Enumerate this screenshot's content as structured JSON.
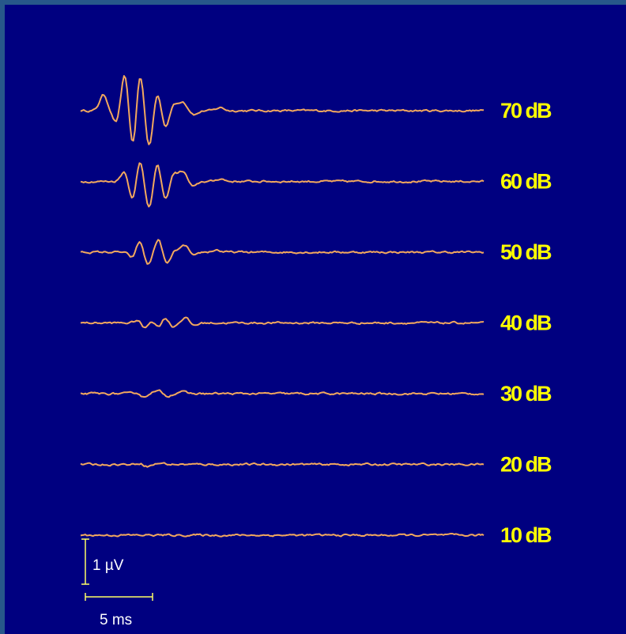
{
  "chart_data": {
    "type": "line",
    "grid": false,
    "legend": "none",
    "colors": {
      "background": "#000080",
      "frame": "#27588a",
      "trace": "#f2a85e",
      "level_label": "#ffff00",
      "scale_bar": "#ffff66",
      "scale_text": "#ffffff"
    },
    "series": [
      {
        "name": "70 dB",
        "peaks": [
          [
            1.7,
            0.35
          ],
          [
            2.7,
            -0.3
          ],
          [
            3.3,
            0.9
          ],
          [
            3.9,
            -1.0
          ],
          [
            4.4,
            0.95
          ],
          [
            5.1,
            -0.85
          ],
          [
            5.7,
            0.45
          ],
          [
            6.3,
            -0.4
          ],
          [
            6.9,
            0.15
          ],
          [
            7.6,
            0.2
          ],
          [
            8.5,
            -0.08
          ],
          [
            10.4,
            0.07
          ]
        ]
      },
      {
        "name": "60 dB",
        "peaks": [
          [
            3.3,
            0.25
          ],
          [
            3.9,
            -0.5
          ],
          [
            4.4,
            0.55
          ],
          [
            5.1,
            -0.65
          ],
          [
            5.7,
            0.45
          ],
          [
            6.3,
            -0.45
          ],
          [
            6.9,
            0.2
          ],
          [
            7.6,
            0.22
          ],
          [
            8.4,
            -0.12
          ],
          [
            10.4,
            0.06
          ]
        ]
      },
      {
        "name": "50 dB",
        "peaks": [
          [
            3.9,
            -0.15
          ],
          [
            4.4,
            0.28
          ],
          [
            5.0,
            -0.3
          ],
          [
            5.8,
            0.3
          ],
          [
            6.4,
            -0.28
          ],
          [
            7.1,
            0.05
          ],
          [
            7.8,
            0.15
          ],
          [
            8.4,
            -0.1
          ],
          [
            10.1,
            0.05
          ]
        ]
      },
      {
        "name": "40 dB",
        "peaks": [
          [
            4.4,
            0.12
          ],
          [
            4.7,
            -0.18
          ],
          [
            5.3,
            0.08
          ],
          [
            5.8,
            -0.12
          ],
          [
            6.3,
            0.15
          ],
          [
            6.8,
            -0.1
          ],
          [
            7.8,
            0.12
          ],
          [
            8.4,
            -0.06
          ]
        ]
      },
      {
        "name": "30 dB",
        "peaks": [
          [
            4.3,
            0.04
          ],
          [
            4.7,
            -0.1
          ],
          [
            5.2,
            0.04
          ],
          [
            5.9,
            0.06
          ],
          [
            6.4,
            -0.06
          ],
          [
            7.5,
            0.05
          ]
        ]
      },
      {
        "name": "20 dB",
        "peaks": [
          [
            4.5,
            0.04
          ],
          [
            4.9,
            -0.05
          ],
          [
            6.0,
            0.03
          ]
        ]
      },
      {
        "name": "10 dB",
        "peaks": []
      }
    ],
    "scale_bars": {
      "amplitude": {
        "label": "1 µV",
        "value_uV": 1
      },
      "time": {
        "label": "5 ms",
        "value_ms": 5
      }
    }
  }
}
